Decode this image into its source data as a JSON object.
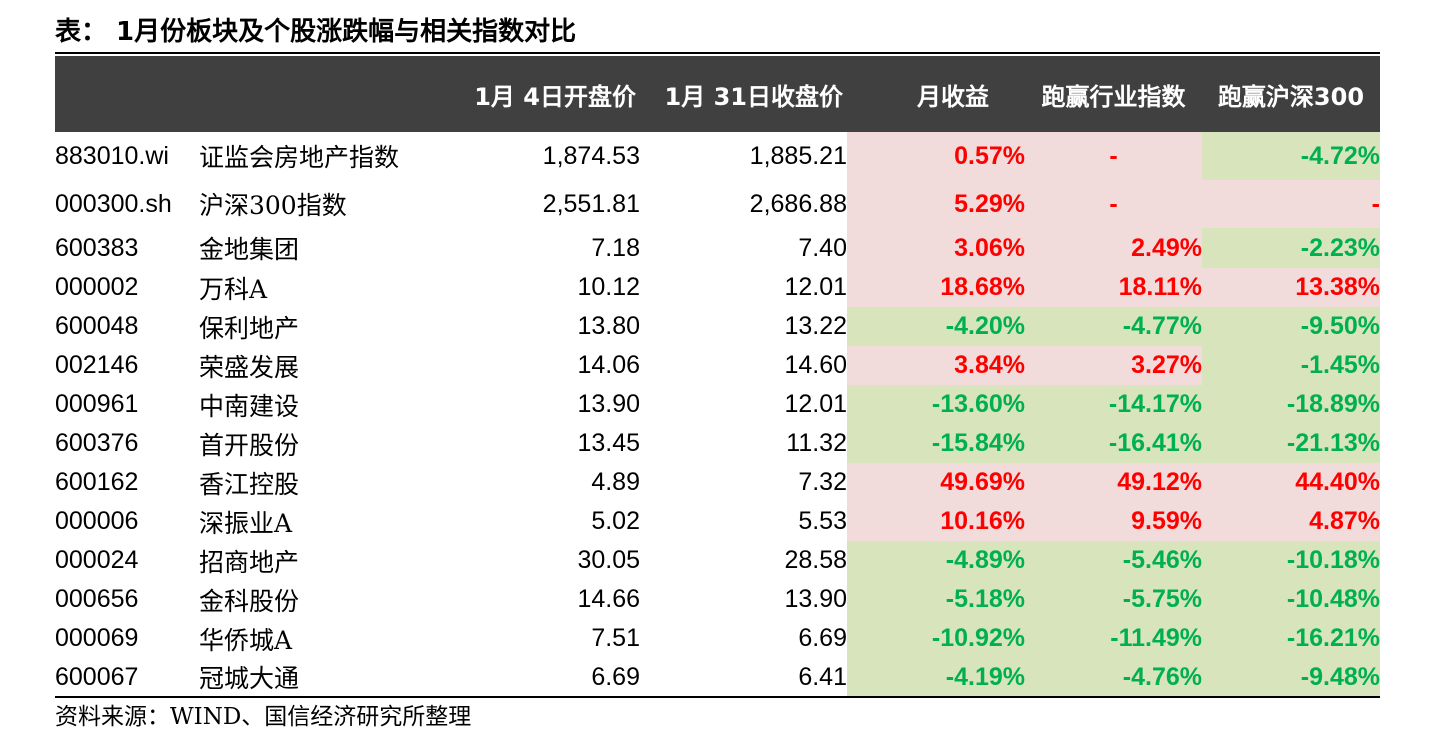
{
  "title": "表：  1月份板块及个股涨跌幅与相关指数对比",
  "columns": {
    "code": "",
    "name": "",
    "open": "1月 4日开盘价",
    "close": "1月 31日收盘价",
    "ret": "月收益",
    "vs_industry": "跑赢行业指数",
    "vs_hs300": "跑赢沪深300"
  },
  "rows": [
    {
      "code": "883010.wi",
      "name": "证监会房地产指数",
      "open": "1,874.53",
      "close": "1,885.21",
      "ret": "0.57%",
      "vs_industry": "-",
      "vs_hs300": "-4.72%"
    },
    {
      "code": "000300.sh",
      "name": "沪深300指数",
      "open": "2,551.81",
      "close": "2,686.88",
      "ret": "5.29%",
      "vs_industry": "-",
      "vs_hs300": "-"
    },
    {
      "code": "600383",
      "name": "金地集团",
      "open": "7.18",
      "close": "7.40",
      "ret": "3.06%",
      "vs_industry": "2.49%",
      "vs_hs300": "-2.23%"
    },
    {
      "code": "000002",
      "name": "万科A",
      "open": "10.12",
      "close": "12.01",
      "ret": "18.68%",
      "vs_industry": "18.11%",
      "vs_hs300": "13.38%"
    },
    {
      "code": "600048",
      "name": "保利地产",
      "open": "13.80",
      "close": "13.22",
      "ret": "-4.20%",
      "vs_industry": "-4.77%",
      "vs_hs300": "-9.50%"
    },
    {
      "code": "002146",
      "name": "荣盛发展",
      "open": "14.06",
      "close": "14.60",
      "ret": "3.84%",
      "vs_industry": "3.27%",
      "vs_hs300": "-1.45%"
    },
    {
      "code": "000961",
      "name": "中南建设",
      "open": "13.90",
      "close": "12.01",
      "ret": "-13.60%",
      "vs_industry": "-14.17%",
      "vs_hs300": "-18.89%"
    },
    {
      "code": "600376",
      "name": "首开股份",
      "open": "13.45",
      "close": "11.32",
      "ret": "-15.84%",
      "vs_industry": "-16.41%",
      "vs_hs300": "-21.13%"
    },
    {
      "code": "600162",
      "name": "香江控股",
      "open": "4.89",
      "close": "7.32",
      "ret": "49.69%",
      "vs_industry": "49.12%",
      "vs_hs300": "44.40%"
    },
    {
      "code": "000006",
      "name": "深振业A",
      "open": "5.02",
      "close": "5.53",
      "ret": "10.16%",
      "vs_industry": "9.59%",
      "vs_hs300": "4.87%"
    },
    {
      "code": "000024",
      "name": "招商地产",
      "open": "30.05",
      "close": "28.58",
      "ret": "-4.89%",
      "vs_industry": "-5.46%",
      "vs_hs300": "-10.18%"
    },
    {
      "code": "000656",
      "name": "金科股份",
      "open": "14.66",
      "close": "13.90",
      "ret": "-5.18%",
      "vs_industry": "-5.75%",
      "vs_hs300": "-10.48%"
    },
    {
      "code": "000069",
      "name": "华侨城A",
      "open": "7.51",
      "close": "6.69",
      "ret": "-10.92%",
      "vs_industry": "-11.49%",
      "vs_hs300": "-16.21%"
    },
    {
      "code": "600067",
      "name": "冠城大通",
      "open": "6.69",
      "close": "6.41",
      "ret": "-4.19%",
      "vs_industry": "-4.76%",
      "vs_hs300": "-9.48%"
    }
  ],
  "source": "资料来源：WIND、国信经济研究所整理",
  "colors": {
    "header_bg": "#404040",
    "positive_text": "#ff0000",
    "negative_text": "#00b050",
    "positive_bg": "#f2dcdb",
    "negative_bg": "#d8e4bc"
  }
}
